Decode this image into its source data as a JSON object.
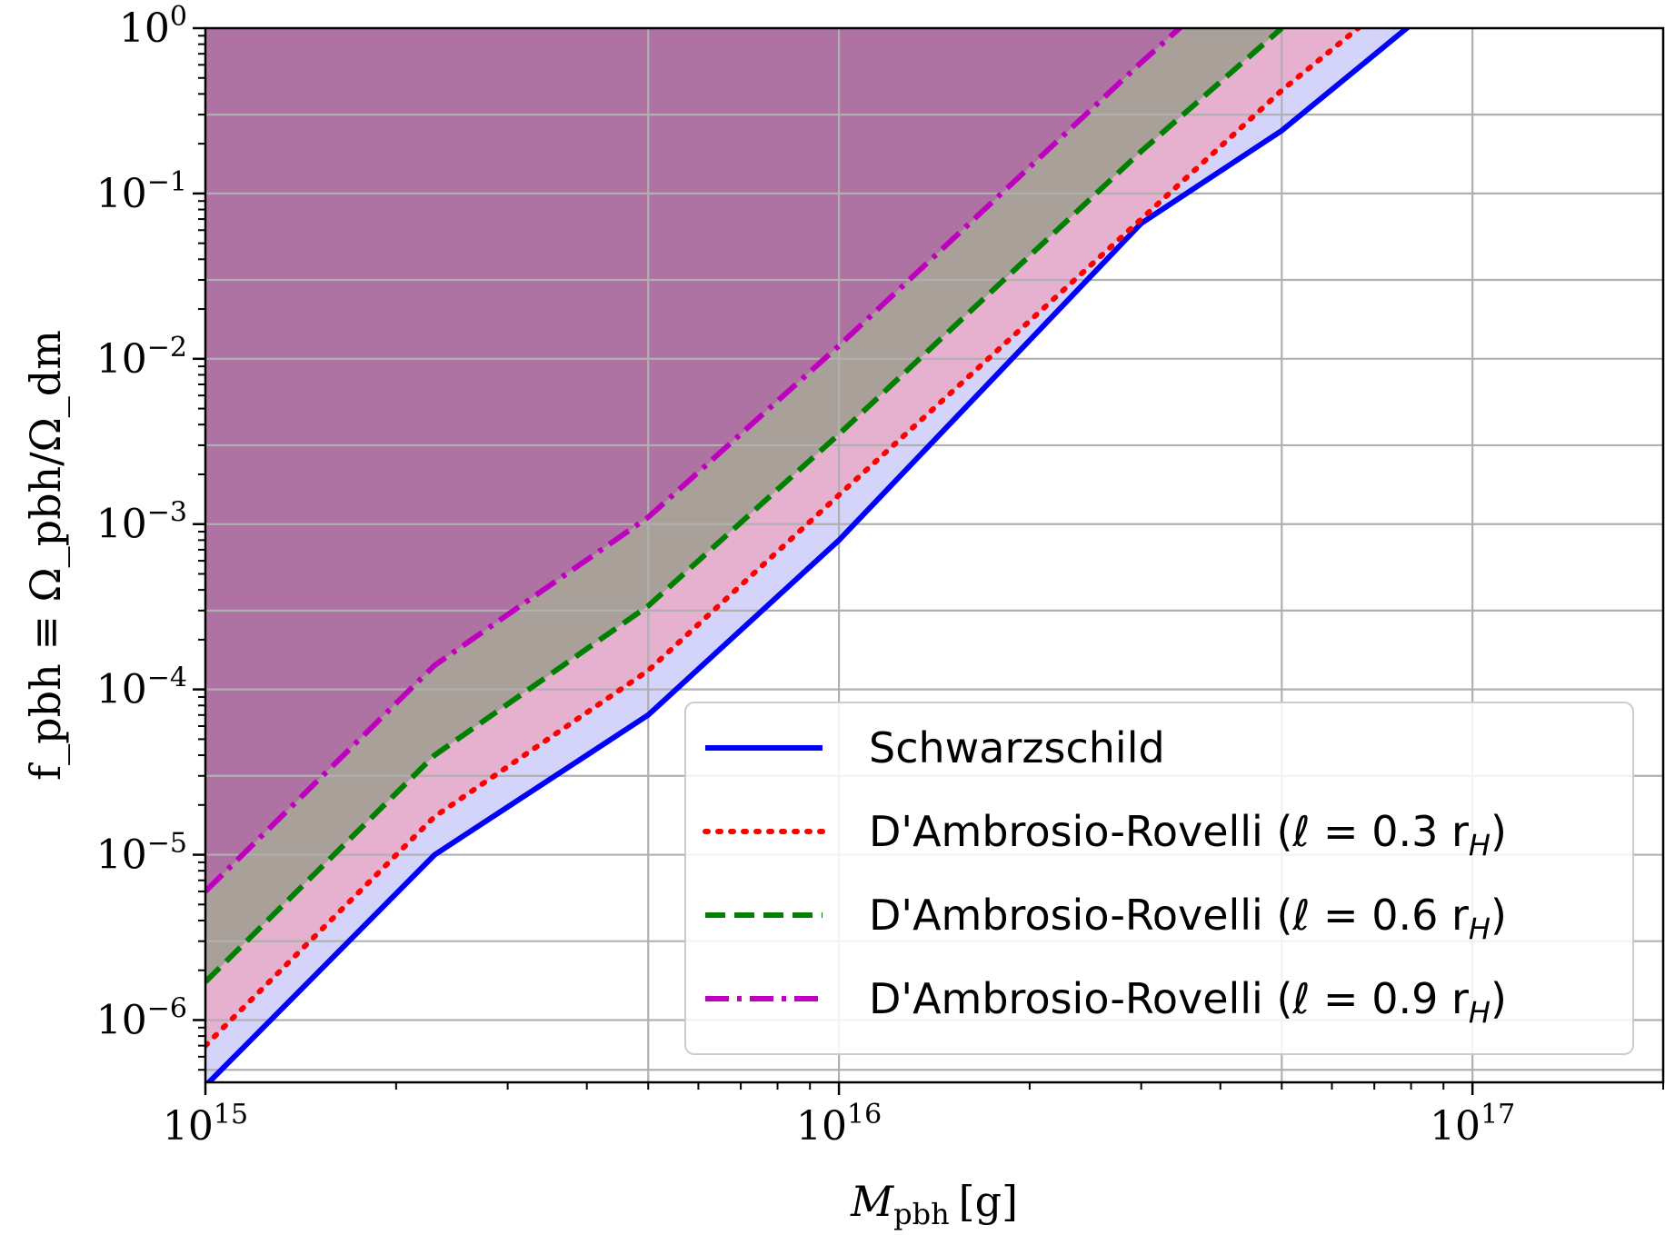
{
  "chart_data": {
    "type": "line",
    "title": "",
    "xlabel": {
      "main": "M",
      "sub": "pbh",
      "unit": "[g]"
    },
    "ylabel": {
      "text": "f_pbh ≡ Ω_pbh/Ω_dm"
    },
    "xscale": "log",
    "yscale": "log",
    "xlim": [
      1000000000000000.0,
      2e+17
    ],
    "ylim": [
      4.2e-07,
      1
    ],
    "x_ticks": [
      {
        "value": 1000000000000000.0,
        "base": "10",
        "exp": "15"
      },
      {
        "value": 1e+16,
        "base": "10",
        "exp": "16"
      },
      {
        "value": 1e+17,
        "base": "10",
        "exp": "17"
      }
    ],
    "y_ticks": [
      {
        "value": 1e-06,
        "base": "10",
        "exp": "−6"
      },
      {
        "value": 1e-05,
        "base": "10",
        "exp": "−5"
      },
      {
        "value": 0.0001,
        "base": "10",
        "exp": "−4"
      },
      {
        "value": 0.001,
        "base": "10",
        "exp": "−3"
      },
      {
        "value": 0.01,
        "base": "10",
        "exp": "−2"
      },
      {
        "value": 0.1,
        "base": "10",
        "exp": "−1"
      },
      {
        "value": 1,
        "base": "10",
        "exp": "0"
      }
    ],
    "grid": true,
    "legend_position": "lower-right",
    "series": [
      {
        "name": "Schwarzschild",
        "legend_label": "Schwarzschild",
        "color": "#0000ff",
        "fill": "#d4d4fb",
        "dash": "solid",
        "points": [
          [
            1000000000000000.0,
            4e-07
          ],
          [
            2300000000000000.0,
            1e-05
          ],
          [
            5000000000000000.0,
            7e-05
          ],
          [
            1e+16,
            0.0008
          ],
          [
            3e+16,
            0.066
          ],
          [
            5e+16,
            0.24
          ],
          [
            8e+16,
            1.05
          ]
        ]
      },
      {
        "name": "D'Ambrosio-Rovelli (ℓ = 0.3 r_H)",
        "legend_label": "D'Ambrosio-Rovelli (ℓ = 0.3 r",
        "legend_sub": "H",
        "color": "#ff0000",
        "fill": "#e6b0cf",
        "dash": "dotted",
        "points": [
          [
            1000000000000000.0,
            7e-07
          ],
          [
            2300000000000000.0,
            1.7e-05
          ],
          [
            5000000000000000.0,
            0.00013
          ],
          [
            1e+16,
            0.0015
          ],
          [
            3e+16,
            0.07
          ],
          [
            5e+16,
            0.42
          ],
          [
            6.6e+16,
            1.0
          ]
        ]
      },
      {
        "name": "D'Ambrosio-Rovelli (ℓ = 0.6 r_H)",
        "legend_label": "D'Ambrosio-Rovelli (ℓ = 0.6 r",
        "legend_sub": "H",
        "color": "#008000",
        "fill": "#a8a099",
        "dash": "dashed",
        "points": [
          [
            1000000000000000.0,
            1.7e-06
          ],
          [
            2300000000000000.0,
            4e-05
          ],
          [
            5000000000000000.0,
            0.00032
          ],
          [
            1e+16,
            0.0035
          ],
          [
            3e+16,
            0.18
          ],
          [
            5e+16,
            1.0
          ]
        ]
      },
      {
        "name": "D'Ambrosio-Rovelli (ℓ = 0.9 r_H)",
        "legend_label": "D'Ambrosio-Rovelli (ℓ = 0.9 r",
        "legend_sub": "H",
        "color": "#bf00bf",
        "fill": "#ae72a3",
        "dash": "dashdot",
        "points": [
          [
            1000000000000000.0,
            6e-06
          ],
          [
            2300000000000000.0,
            0.00014
          ],
          [
            5000000000000000.0,
            0.0011
          ],
          [
            1e+16,
            0.012
          ],
          [
            3e+16,
            0.62
          ],
          [
            3.5e+16,
            1.05
          ]
        ]
      }
    ]
  }
}
